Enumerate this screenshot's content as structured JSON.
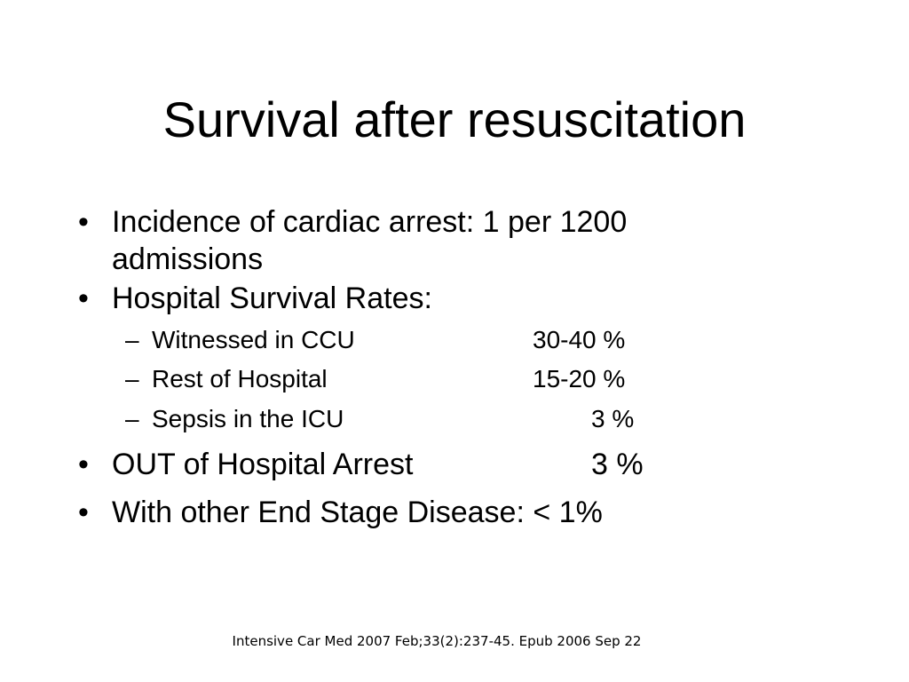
{
  "slide": {
    "title": "Survival after resuscitation",
    "bullets": [
      {
        "marker": "•",
        "line1": "Incidence of cardiac arrest:  1 per 1200",
        "line2": "admissions"
      },
      {
        "marker": "•",
        "text": "Hospital Survival Rates:",
        "sub": [
          {
            "marker": "–",
            "label": "Witnessed in CCU",
            "value": "30-40 %"
          },
          {
            "marker": "–",
            "label": "Rest of Hospital",
            "value": "15-20 %"
          },
          {
            "marker": "–",
            "label": "Sepsis in the ICU",
            "value": "3 %"
          }
        ]
      },
      {
        "marker": "•",
        "label": "OUT of Hospital Arrest",
        "value": "3 %"
      },
      {
        "marker": "•",
        "text": "With other End Stage Disease: < 1%"
      }
    ],
    "citation": "Intensive Car Med 2007 Feb;33(2):237-45. Epub 2006 Sep 22"
  }
}
